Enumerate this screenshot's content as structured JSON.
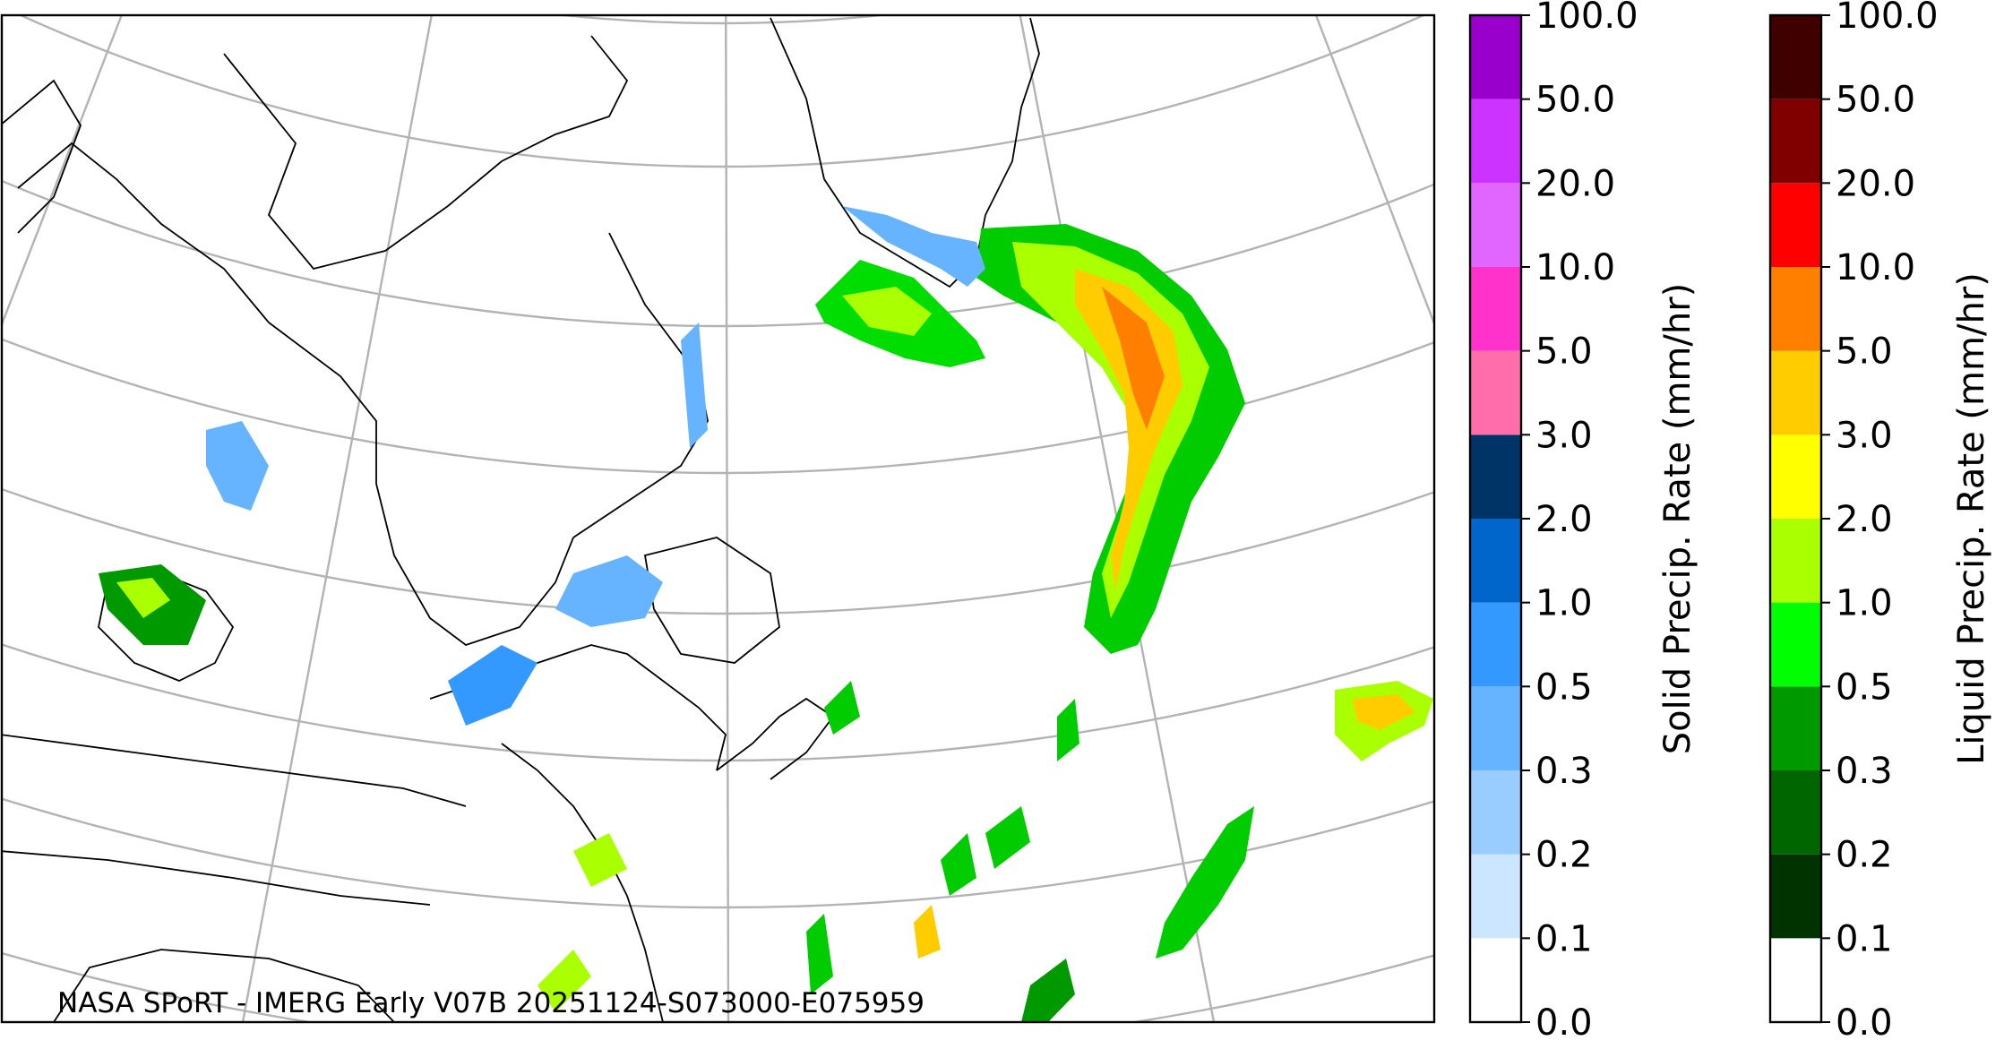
{
  "map": {
    "caption": "NASA SPoRT - IMERG Early V07B 20251124-S073000-E075959"
  },
  "colorbars": [
    {
      "title": "Solid Precip. Rate (mm/hr)",
      "ticks": [
        {
          "value": 0,
          "label": "0.0"
        },
        {
          "value": 0.1,
          "label": "0.1"
        },
        {
          "value": 0.2,
          "label": "0.2"
        },
        {
          "value": 0.3,
          "label": "0.3"
        },
        {
          "value": 0.5,
          "label": "0.5"
        },
        {
          "value": 1,
          "label": "1.0"
        },
        {
          "value": 2,
          "label": "2.0"
        },
        {
          "value": 3,
          "label": "3.0"
        },
        {
          "value": 5,
          "label": "5.0"
        },
        {
          "value": 10,
          "label": "10.0"
        },
        {
          "value": 20,
          "label": "20.0"
        },
        {
          "value": 50,
          "label": "50.0"
        },
        {
          "value": 100,
          "label": "100.0"
        }
      ],
      "colors": [
        "#ffffff",
        "#cce6ff",
        "#99ccff",
        "#66b3ff",
        "#3399ff",
        "#0066cc",
        "#003366",
        "#ff6eaa",
        "#ff33cc",
        "#e066ff",
        "#cc33ff",
        "#9900cc"
      ]
    },
    {
      "title": "Liquid Precip. Rate (mm/hr)",
      "ticks": [
        {
          "value": 0,
          "label": "0.0"
        },
        {
          "value": 0.1,
          "label": "0.1"
        },
        {
          "value": 0.2,
          "label": "0.2"
        },
        {
          "value": 0.3,
          "label": "0.3"
        },
        {
          "value": 0.5,
          "label": "0.5"
        },
        {
          "value": 1,
          "label": "1.0"
        },
        {
          "value": 2,
          "label": "2.0"
        },
        {
          "value": 3,
          "label": "3.0"
        },
        {
          "value": 5,
          "label": "5.0"
        },
        {
          "value": 10,
          "label": "10.0"
        },
        {
          "value": 20,
          "label": "20.0"
        },
        {
          "value": 50,
          "label": "50.0"
        },
        {
          "value": 100,
          "label": "100.0"
        }
      ],
      "colors": [
        "#ffffff",
        "#003300",
        "#006600",
        "#009900",
        "#00ff00",
        "#aaff00",
        "#ffff00",
        "#ffcc00",
        "#ff8000",
        "#ff0000",
        "#800000",
        "#400000"
      ]
    }
  ]
}
